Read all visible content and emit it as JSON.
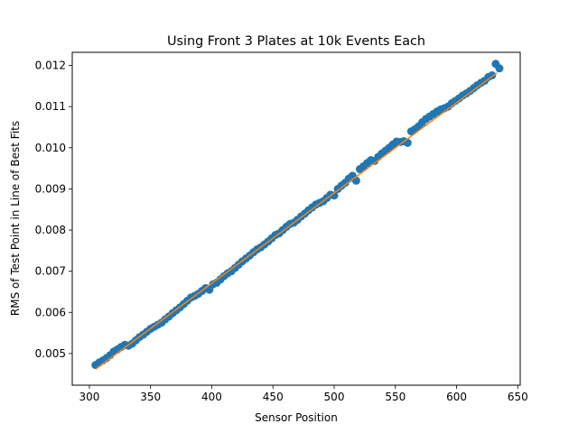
{
  "chart_data": {
    "type": "scatter",
    "title": "Using Front 3 Plates at 10k Events Each",
    "xlabel": "Sensor Position",
    "ylabel": "RMS of Test Point in Line of Best Fits",
    "xlim": [
      286,
      652
    ],
    "ylim": [
      0.00423,
      0.01232
    ],
    "xticks": [
      300,
      350,
      400,
      450,
      500,
      550,
      600,
      650
    ],
    "yticks": [
      0.005,
      0.006,
      0.007,
      0.008,
      0.009,
      0.01,
      0.011,
      0.012
    ],
    "grid": false,
    "series": [
      {
        "kind": "scatter",
        "color": "#1f77b4",
        "x": [
          305,
          308,
          311,
          314,
          317,
          320,
          323,
          326,
          329,
          332,
          335,
          338,
          341,
          344,
          347,
          350,
          353,
          356,
          359,
          362,
          365,
          368,
          371,
          374,
          377,
          380,
          383,
          386,
          389,
          392,
          395,
          398,
          401,
          404,
          407,
          410,
          413,
          416,
          419,
          422,
          425,
          428,
          431,
          434,
          437,
          440,
          443,
          446,
          449,
          452,
          455,
          458,
          461,
          464,
          467,
          470,
          473,
          476,
          479,
          482,
          485,
          488,
          491,
          494,
          497,
          500,
          503,
          506,
          509,
          512,
          515,
          518,
          521,
          524,
          527,
          530,
          533,
          536,
          539,
          542,
          545,
          548,
          551,
          554,
          557,
          560,
          563,
          566,
          569,
          572,
          575,
          578,
          581,
          584,
          587,
          590,
          593,
          596,
          599,
          602,
          605,
          608,
          611,
          614,
          617,
          620,
          623,
          626,
          629,
          632,
          635
        ],
        "y": [
          0.00472,
          0.00478,
          0.00483,
          0.00489,
          0.00496,
          0.00505,
          0.0051,
          0.00516,
          0.00521,
          0.00519,
          0.00524,
          0.00532,
          0.0054,
          0.00546,
          0.00553,
          0.0056,
          0.00565,
          0.0057,
          0.00575,
          0.00583,
          0.0059,
          0.00598,
          0.00605,
          0.00612,
          0.0062,
          0.00628,
          0.00636,
          0.0064,
          0.00645,
          0.00652,
          0.00659,
          0.00655,
          0.00668,
          0.00672,
          0.0068,
          0.00688,
          0.00695,
          0.007,
          0.00708,
          0.00716,
          0.00724,
          0.00731,
          0.00738,
          0.00746,
          0.00753,
          0.00758,
          0.00765,
          0.00772,
          0.0078,
          0.00788,
          0.00792,
          0.008,
          0.00808,
          0.00815,
          0.00818,
          0.00825,
          0.00833,
          0.0084,
          0.00848,
          0.00855,
          0.00862,
          0.00866,
          0.0087,
          0.00878,
          0.00886,
          0.00884,
          0.009,
          0.00908,
          0.00915,
          0.00925,
          0.00932,
          0.0092,
          0.00948,
          0.00955,
          0.00963,
          0.0097,
          0.00968,
          0.00978,
          0.00986,
          0.00993,
          0.01,
          0.01008,
          0.01015,
          0.01014,
          0.01016,
          0.01012,
          0.0104,
          0.01045,
          0.01052,
          0.01062,
          0.0107,
          0.01076,
          0.01082,
          0.01088,
          0.01093,
          0.01096,
          0.011,
          0.01108,
          0.01114,
          0.0112,
          0.01127,
          0.01132,
          0.01138,
          0.01145,
          0.01152,
          0.01158,
          0.01163,
          0.01172,
          0.01176,
          0.01204,
          0.01193
        ]
      },
      {
        "kind": "line",
        "color": "#ff7f0e",
        "x": [
          305,
          633
        ],
        "y": [
          0.00462,
          0.01182
        ]
      }
    ]
  }
}
